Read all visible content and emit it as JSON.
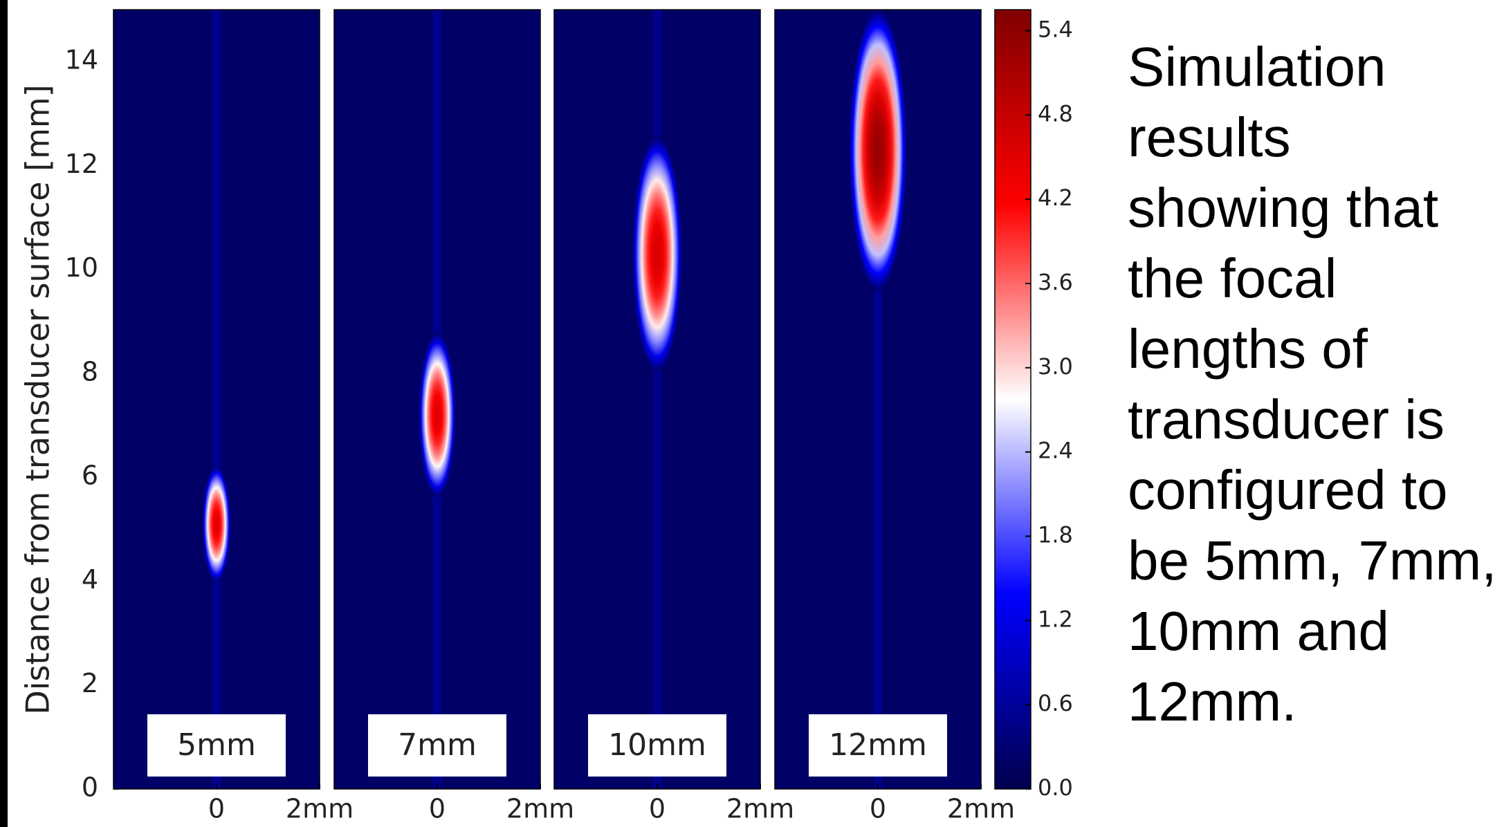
{
  "chart_data": {
    "type": "heatmap",
    "ylabel": "Distance from transducer surface [mm]",
    "ylim": [
      0,
      15
    ],
    "yticks": [
      0,
      2,
      4,
      6,
      8,
      10,
      12,
      14
    ],
    "xlim": [
      -2,
      2
    ],
    "xticks": [
      0,
      {
        "value": 2,
        "label": "2mm"
      }
    ],
    "background_value": 0.2,
    "panels": [
      {
        "label": "5mm",
        "focus_y": 5.1,
        "peak": 4.5
      },
      {
        "label": "7mm",
        "focus_y": 7.2,
        "peak": 4.5
      },
      {
        "label": "10mm",
        "focus_y": 10.3,
        "peak": 4.6
      },
      {
        "label": "12mm",
        "focus_y": 12.3,
        "peak": 5.3
      }
    ],
    "colorbar": {
      "lim": [
        0,
        5.55
      ],
      "ticks": [
        {
          "value": 0,
          "label": "0.0"
        },
        {
          "value": 0.6,
          "label": "0.6"
        },
        {
          "value": 1.2,
          "label": "1.2"
        },
        {
          "value": 1.8,
          "label": "1.8"
        },
        {
          "value": 2.4,
          "label": "2.4"
        },
        {
          "value": 3,
          "label": "3.0"
        },
        {
          "value": 3.6,
          "label": "3.6"
        },
        {
          "value": 4.2,
          "label": "4.2"
        },
        {
          "value": 4.8,
          "label": "4.8"
        },
        {
          "value": 5.4,
          "label": "5.4"
        }
      ],
      "colors": [
        "#00004c",
        "#0000ff",
        "#ffffff",
        "#ff0000",
        "#800000"
      ]
    }
  },
  "caption": "Simulation results showing that the focal lengths of transducer is configured to be 5mm, 7mm, 10mm and 12mm."
}
